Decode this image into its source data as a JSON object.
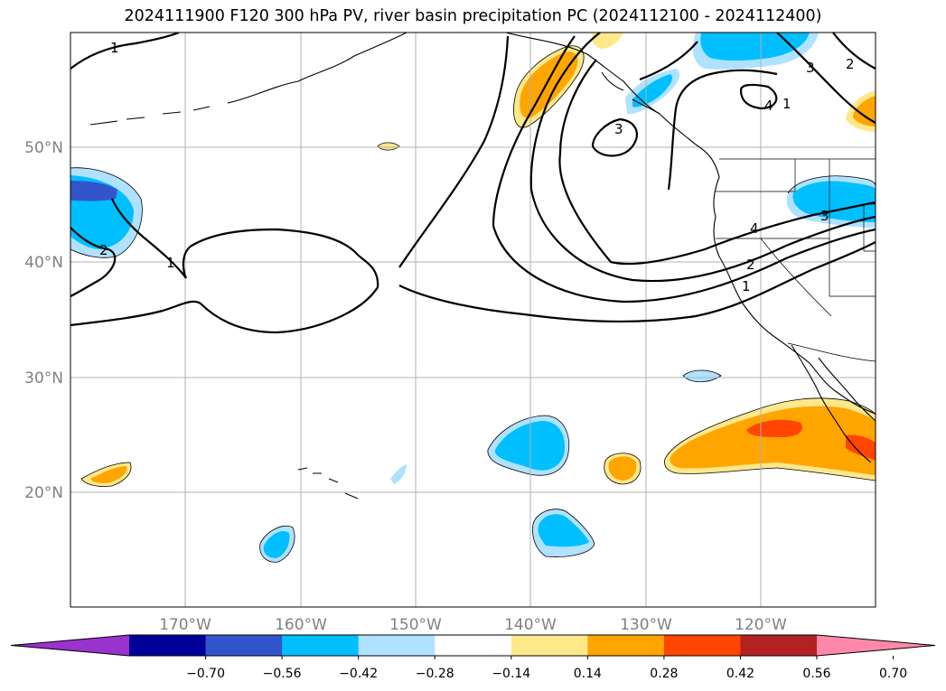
{
  "title": "2024111900 F120 300 hPa PV, river basin precipitation PC (2024112100 - 2024112400)",
  "axes": {
    "lat_labels": [
      "50°N",
      "40°N",
      "30°N",
      "20°N"
    ],
    "lon_labels": [
      "170°W",
      "160°W",
      "150°W",
      "140°W",
      "130°W",
      "120°W"
    ]
  },
  "contour_labels": [
    "1",
    "1",
    "1",
    "1",
    "2",
    "2",
    "2",
    "3",
    "3",
    "3",
    "4",
    "4"
  ],
  "colorbar": {
    "tick_labels": [
      "−0.70",
      "−0.56",
      "−0.42",
      "−0.28",
      "−0.14",
      "0.14",
      "0.28",
      "0.42",
      "0.56",
      "0.70"
    ],
    "colors": [
      "#9933cc",
      "#000099",
      "#3355cc",
      "#00bfff",
      "#afe2ff",
      "#ffffff",
      "#ffe88a",
      "#ffa500",
      "#ff4500",
      "#b22222",
      "#ff88aa"
    ]
  },
  "colors": {
    "blue_light": "#afe2ff",
    "blue": "#00bfff",
    "blue_dark": "#3355cc",
    "yellow": "#ffe88a",
    "orange": "#ffa500",
    "red": "#ff4500",
    "grid": "#b0b0b0",
    "axis_label": "#808080"
  }
}
